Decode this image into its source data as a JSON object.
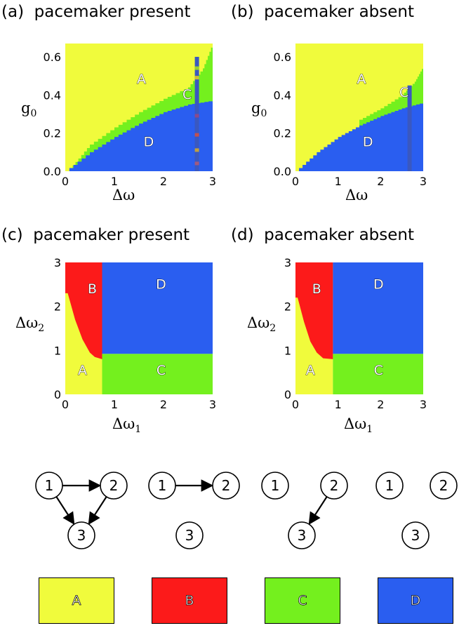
{
  "panels": [
    {
      "id": "a",
      "label": "(a)",
      "title": "pacemaker present",
      "ylabel": "g",
      "ylabel_sub": "0",
      "xlabel": "Δω"
    },
    {
      "id": "b",
      "label": "(b)",
      "title": "pacemaker absent",
      "ylabel": "g",
      "ylabel_sub": "0",
      "xlabel": "Δω"
    },
    {
      "id": "c",
      "label": "(c)",
      "title": "pacemaker present",
      "ylabel": "Δω",
      "ylabel_sub": "2",
      "xlabel": "Δω",
      "xlabel_sub": "1"
    },
    {
      "id": "d",
      "label": "(d)",
      "title": "pacemaker absent",
      "ylabel": "Δω",
      "ylabel_sub": "2",
      "xlabel": "Δω",
      "xlabel_sub": "1"
    }
  ],
  "chart_data": [
    {
      "type": "heatmap",
      "panel": "a",
      "xlim": [
        0,
        3
      ],
      "ylim": [
        0,
        0.67
      ],
      "xticks": [
        "0",
        "1",
        "2",
        "3"
      ],
      "yticks": [
        "0.0",
        "0.2",
        "0.4",
        "0.6"
      ],
      "boundary_AD": [
        [
          0,
          0
        ],
        [
          0.5,
          0.1
        ],
        [
          1,
          0.18
        ],
        [
          1.5,
          0.25
        ],
        [
          2,
          0.31
        ],
        [
          2.5,
          0.35
        ],
        [
          3,
          0.37
        ]
      ],
      "boundary_CA": [
        [
          0.15,
          0.03
        ],
        [
          0.5,
          0.14
        ],
        [
          1,
          0.23
        ],
        [
          1.5,
          0.31
        ],
        [
          2,
          0.38
        ],
        [
          2.5,
          0.44
        ],
        [
          2.8,
          0.54
        ],
        [
          3,
          0.67
        ]
      ],
      "stripe_x": 2.68,
      "region_labels": [
        {
          "text": "A",
          "x": 1.55,
          "y": 0.46
        },
        {
          "text": "C",
          "x": 2.48,
          "y": 0.38
        },
        {
          "text": "D",
          "x": 1.7,
          "y": 0.13
        }
      ]
    },
    {
      "type": "heatmap",
      "panel": "b",
      "xlim": [
        0,
        3
      ],
      "ylim": [
        0,
        0.67
      ],
      "xticks": [
        "0",
        "1",
        "2",
        "3"
      ],
      "yticks": [
        "0.0",
        "0.2",
        "0.4",
        "0.6"
      ],
      "boundary_AD": [
        [
          0,
          0
        ],
        [
          0.5,
          0.1
        ],
        [
          1,
          0.18
        ],
        [
          1.5,
          0.24
        ],
        [
          2,
          0.29
        ],
        [
          2.5,
          0.33
        ],
        [
          3,
          0.36
        ]
      ],
      "boundary_CA": [
        [
          1.5,
          0.27
        ],
        [
          2,
          0.33
        ],
        [
          2.5,
          0.4
        ],
        [
          2.8,
          0.47
        ],
        [
          3,
          0.55
        ]
      ],
      "stripe_x": 2.68,
      "region_labels": [
        {
          "text": "A",
          "x": 1.55,
          "y": 0.46
        },
        {
          "text": "C",
          "x": 2.55,
          "y": 0.39
        },
        {
          "text": "D",
          "x": 1.7,
          "y": 0.13
        }
      ]
    },
    {
      "type": "heatmap",
      "panel": "c",
      "xlim": [
        0,
        3
      ],
      "ylim": [
        0,
        3
      ],
      "xticks": [
        "0",
        "1",
        "2",
        "3"
      ],
      "yticks": [
        "0",
        "1",
        "2",
        "3"
      ],
      "split_x": 0.75,
      "split_y": 0.92,
      "red_boundary": [
        [
          0.05,
          2.3
        ],
        [
          0.2,
          1.7
        ],
        [
          0.35,
          1.25
        ],
        [
          0.5,
          0.95
        ],
        [
          0.6,
          0.85
        ],
        [
          0.75,
          0.8
        ]
      ],
      "region_labels": [
        {
          "text": "A",
          "x": 0.35,
          "y": 0.45
        },
        {
          "text": "B",
          "x": 0.55,
          "y": 2.3
        },
        {
          "text": "C",
          "x": 1.95,
          "y": 0.45
        },
        {
          "text": "D",
          "x": 1.95,
          "y": 2.4
        }
      ]
    },
    {
      "type": "heatmap",
      "panel": "d",
      "xlim": [
        0,
        3
      ],
      "ylim": [
        0,
        3
      ],
      "xticks": [
        "0",
        "1",
        "2",
        "3"
      ],
      "yticks": [
        "0",
        "1",
        "2",
        "3"
      ],
      "split_x": 0.88,
      "split_y": 0.92,
      "red_boundary": [
        [
          0.05,
          2.2
        ],
        [
          0.2,
          1.65
        ],
        [
          0.35,
          1.2
        ],
        [
          0.5,
          0.95
        ],
        [
          0.65,
          0.82
        ],
        [
          0.88,
          0.8
        ]
      ],
      "region_labels": [
        {
          "text": "A",
          "x": 0.35,
          "y": 0.45
        },
        {
          "text": "B",
          "x": 0.5,
          "y": 2.3
        },
        {
          "text": "C",
          "x": 1.95,
          "y": 0.45
        },
        {
          "text": "D",
          "x": 1.95,
          "y": 2.4
        }
      ]
    }
  ],
  "colors": {
    "A": "#f0fb3c",
    "B": "#fc1a1a",
    "C": "#74f01e",
    "D": "#2a5ef0"
  },
  "networks": [
    {
      "nodes": [
        "1",
        "2",
        "3"
      ],
      "edges": [
        [
          "1",
          "2"
        ],
        [
          "1",
          "3"
        ],
        [
          "2",
          "3"
        ]
      ]
    },
    {
      "nodes": [
        "1",
        "2",
        "3"
      ],
      "edges": [
        [
          "1",
          "2"
        ]
      ]
    },
    {
      "nodes": [
        "1",
        "2",
        "3"
      ],
      "edges": [
        [
          "2",
          "3"
        ]
      ]
    },
    {
      "nodes": [
        "1",
        "2",
        "3"
      ],
      "edges": []
    }
  ],
  "legend": [
    {
      "label": "A",
      "color": "#f0fb3c"
    },
    {
      "label": "B",
      "color": "#fc1a1a"
    },
    {
      "label": "C",
      "color": "#74f01e"
    },
    {
      "label": "D",
      "color": "#2a5ef0"
    }
  ]
}
